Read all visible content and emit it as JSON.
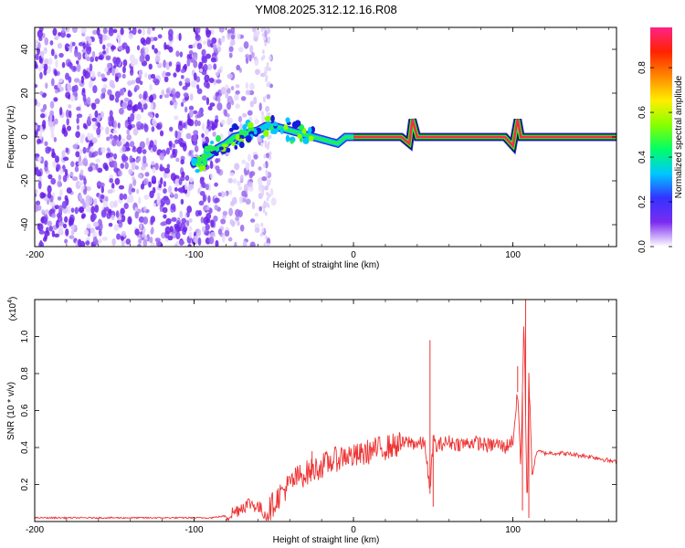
{
  "title": "YM08.2025.312.12.16.R08",
  "chart_data": [
    {
      "type": "heatmap",
      "name": "spectrogram",
      "xlabel": "Height of straight line (km)",
      "ylabel": "Frequency (Hz)",
      "xlim": [
        -200,
        165
      ],
      "ylim": [
        -50,
        50
      ],
      "xticks": [
        -200,
        -100,
        0,
        100
      ],
      "xtick_labels": [
        "-200",
        "-100",
        "0",
        "100"
      ],
      "yticks": [
        -40,
        -20,
        0,
        20,
        40
      ],
      "ytick_labels": [
        "-40",
        "-20",
        "0",
        "20",
        "40"
      ],
      "ridge": {
        "x": [
          -100,
          -95,
          -90,
          -85,
          -80,
          -75,
          -70,
          -65,
          -60,
          -55,
          -50,
          -45,
          -40,
          -35,
          -30,
          -25,
          -20,
          -15,
          -10,
          -5,
          0,
          10,
          20,
          30,
          35,
          37,
          40,
          45,
          50,
          60,
          70,
          80,
          90,
          95,
          100,
          103,
          105,
          110,
          120,
          140,
          165
        ],
        "y": [
          -12,
          -10,
          -8,
          -5,
          -3,
          0,
          1,
          2,
          3,
          5,
          5,
          4,
          3,
          2,
          1,
          0,
          -1,
          -2,
          -3,
          0,
          0,
          0,
          0,
          0,
          -3,
          8,
          0,
          0,
          0,
          0,
          0,
          0,
          0,
          0,
          -4,
          8,
          0,
          0,
          0,
          0,
          0
        ]
      }
    },
    {
      "type": "line",
      "name": "snr",
      "xlabel": "Height of straight line (km)",
      "ylabel": "SNR (10 * v/v)",
      "y_scale_label": "(x10",
      "y_scale_exp": "4",
      "xlim": [
        -200,
        165
      ],
      "ylim": [
        0,
        1.2
      ],
      "xticks": [
        -200,
        -100,
        0,
        100
      ],
      "xtick_labels": [
        "-200",
        "-100",
        "0",
        "100"
      ],
      "yticks": [
        0.2,
        0.4,
        0.6,
        0.8,
        1.0
      ],
      "ytick_labels": [
        "0.2",
        "0.4",
        "0.6",
        "0.8",
        "1.0"
      ],
      "color": "#ee3333",
      "x": [
        -200,
        -180,
        -160,
        -140,
        -120,
        -100,
        -90,
        -80,
        -75,
        -70,
        -65,
        -60,
        -55,
        -50,
        -45,
        -40,
        -35,
        -30,
        -25,
        -20,
        -15,
        -10,
        -5,
        0,
        5,
        10,
        15,
        20,
        25,
        30,
        35,
        40,
        45,
        48,
        50,
        52,
        55,
        60,
        65,
        70,
        75,
        80,
        85,
        90,
        95,
        100,
        103,
        105,
        107,
        109,
        110,
        112,
        115,
        120,
        130,
        140,
        150,
        160,
        165
      ],
      "y": [
        0.02,
        0.02,
        0.02,
        0.02,
        0.02,
        0.02,
        0.02,
        0.03,
        0.05,
        0.08,
        0.1,
        0.08,
        0.04,
        0.1,
        0.16,
        0.2,
        0.24,
        0.26,
        0.28,
        0.3,
        0.32,
        0.34,
        0.36,
        0.35,
        0.36,
        0.38,
        0.39,
        0.4,
        0.41,
        0.42,
        0.43,
        0.42,
        0.42,
        0.15,
        0.45,
        0.4,
        0.42,
        0.43,
        0.42,
        0.42,
        0.43,
        0.42,
        0.41,
        0.42,
        0.4,
        0.44,
        0.7,
        0.3,
        1.1,
        0.05,
        0.8,
        0.25,
        0.38,
        0.37,
        0.37,
        0.36,
        0.35,
        0.33,
        0.32
      ],
      "spikes": [
        {
          "x": -26,
          "y": 0.38
        },
        {
          "x": 48,
          "y": 0.98
        },
        {
          "x": 50,
          "y": 0.08
        },
        {
          "x": 103,
          "y": 0.84
        },
        {
          "x": 106,
          "y": 0.06
        },
        {
          "x": 108,
          "y": 1.2
        },
        {
          "x": 110,
          "y": 0.02
        }
      ]
    }
  ],
  "colorbar": {
    "label": "Normalized spectral amplitude",
    "ticks": [
      0.0,
      0.2,
      0.4,
      0.6,
      0.8
    ],
    "tick_labels": [
      "0.0",
      "0.2",
      "0.4",
      "0.6",
      "0.8"
    ],
    "stops": [
      "#ffffff",
      "#7b2cf0",
      "#3333ff",
      "#00c8ff",
      "#00ff66",
      "#88ff00",
      "#ffee00",
      "#ff8800",
      "#ff2200",
      "#ff2288"
    ]
  }
}
